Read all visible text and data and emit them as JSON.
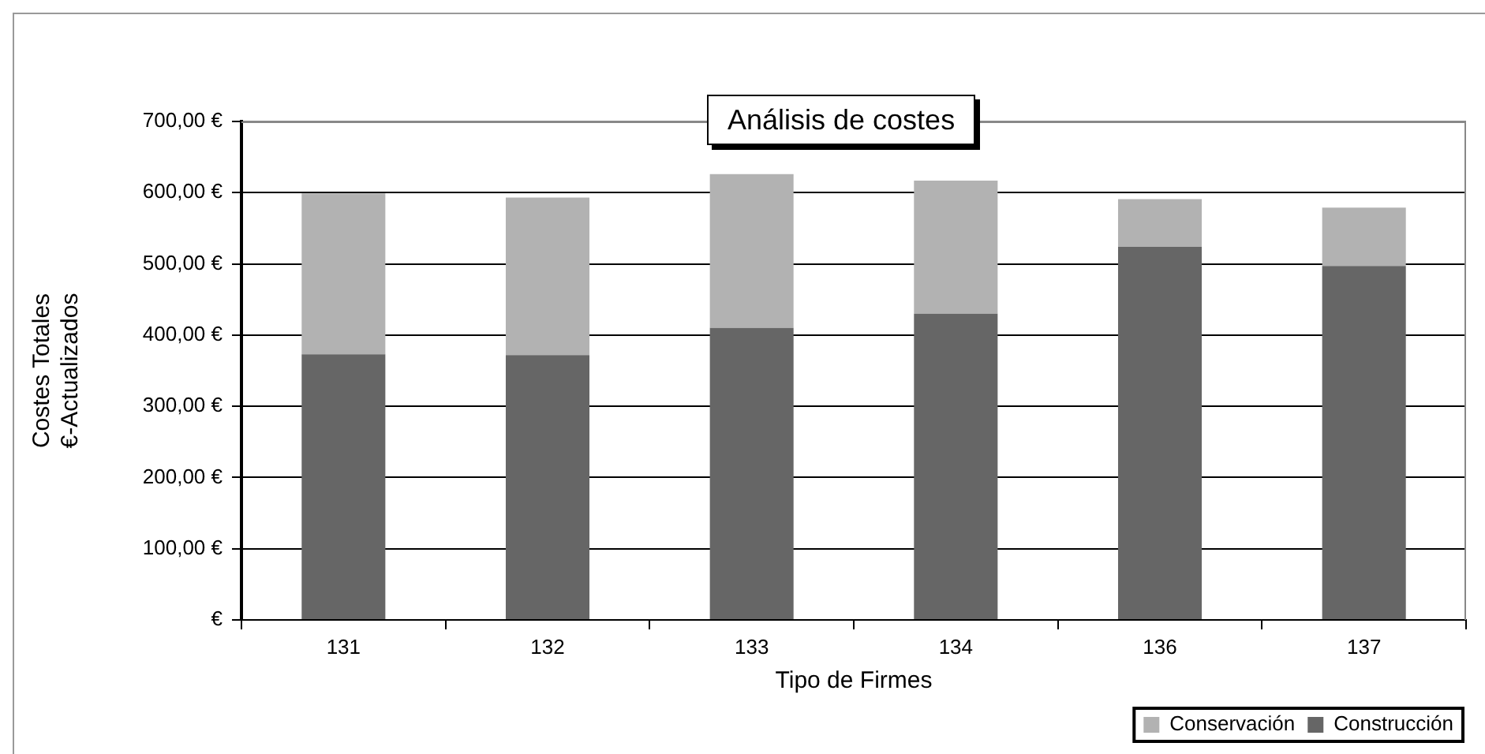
{
  "chart_data": {
    "type": "bar",
    "title": "Análisis de costes",
    "xlabel": "Tipo de Firmes",
    "ylabel": "Costes Totales\n€-Actualizados",
    "categories": [
      "131",
      "132",
      "133",
      "134",
      "136",
      "137"
    ],
    "series": [
      {
        "name": "Construcción",
        "color": "#666666",
        "values": [
          373,
          372,
          410,
          430,
          524,
          497
        ]
      },
      {
        "name": "Conservación",
        "color": "#b2b2b2",
        "values": [
          226,
          221,
          216,
          187,
          67,
          82
        ]
      }
    ],
    "stacked": true,
    "ylim": [
      0,
      700
    ],
    "yticks": [
      {
        "value": 0,
        "label": "€"
      },
      {
        "value": 100,
        "label": "100,00 €"
      },
      {
        "value": 200,
        "label": "200,00 €"
      },
      {
        "value": 300,
        "label": "300,00 €"
      },
      {
        "value": 400,
        "label": "400,00 €"
      },
      {
        "value": 500,
        "label": "500,00 €"
      },
      {
        "value": 600,
        "label": "600,00 €"
      },
      {
        "value": 700,
        "label": "700,00 €"
      }
    ],
    "grid": "y",
    "legend": "bottom right"
  }
}
